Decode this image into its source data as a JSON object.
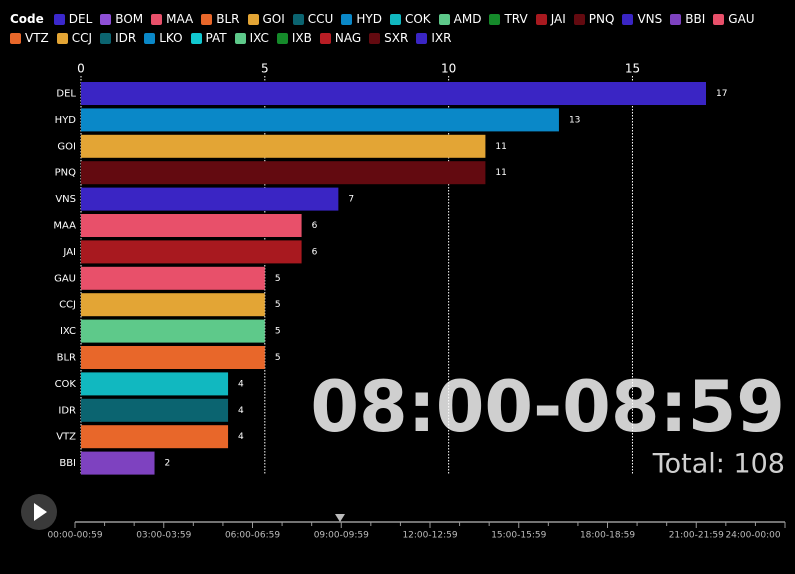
{
  "chart_data": {
    "type": "bar",
    "orientation": "horizontal",
    "legend_title": "Code",
    "legend": [
      {
        "name": "DEL",
        "color": "#3b28cc"
      },
      {
        "name": "BOM",
        "color": "#8e4fd6"
      },
      {
        "name": "MAA",
        "color": "#e8506a"
      },
      {
        "name": "BLR",
        "color": "#e8672a"
      },
      {
        "name": "GOI",
        "color": "#e3a535"
      },
      {
        "name": "CCU",
        "color": "#0b6470"
      },
      {
        "name": "HYD",
        "color": "#0a88c8"
      },
      {
        "name": "COK",
        "color": "#11b8c0"
      },
      {
        "name": "AMD",
        "color": "#5ec98a"
      },
      {
        "name": "TRV",
        "color": "#158a2a"
      },
      {
        "name": "JAI",
        "color": "#a8191f"
      },
      {
        "name": "PNQ",
        "color": "#630a10"
      },
      {
        "name": "VNS",
        "color": "#3a25c4"
      },
      {
        "name": "BBI",
        "color": "#7e42c0"
      },
      {
        "name": "GAU",
        "color": "#e8506a"
      },
      {
        "name": "VTZ",
        "color": "#e8672a"
      },
      {
        "name": "CCJ",
        "color": "#e3a535"
      },
      {
        "name": "IDR",
        "color": "#0b6470"
      },
      {
        "name": "LKO",
        "color": "#0a88c8"
      },
      {
        "name": "PAT",
        "color": "#11c8d0"
      },
      {
        "name": "IXC",
        "color": "#5ec98a"
      },
      {
        "name": "IXB",
        "color": "#158a2a"
      },
      {
        "name": "NAG",
        "color": "#b81d24"
      },
      {
        "name": "SXR",
        "color": "#630a10"
      },
      {
        "name": "IXR",
        "color": "#3a25c4"
      }
    ],
    "categories": [
      "DEL",
      "HYD",
      "GOI",
      "PNQ",
      "VNS",
      "MAA",
      "JAI",
      "GAU",
      "CCJ",
      "IXC",
      "BLR",
      "COK",
      "IDR",
      "VTZ",
      "BBI"
    ],
    "values": [
      17,
      13,
      11,
      11,
      7,
      6,
      6,
      5,
      5,
      5,
      5,
      4,
      4,
      4,
      2
    ],
    "colors": [
      "#3a25c4",
      "#0a88c8",
      "#e3a535",
      "#630a10",
      "#3a25c4",
      "#e8506a",
      "#a8191f",
      "#e8506a",
      "#e3a535",
      "#5ec98a",
      "#e8672a",
      "#11b8c0",
      "#0b6470",
      "#e8672a",
      "#7e42c0"
    ],
    "xlim": [
      0,
      17
    ],
    "xticks": [
      0,
      5,
      10,
      15
    ],
    "grid": true,
    "time_label": "08:00-08:59",
    "total_label": "Total: 108",
    "timeline_ticks": [
      "00:00-00:59",
      "03:00-03:59",
      "06:00-06:59",
      "09:00-09:59",
      "12:00-12:59",
      "15:00-15:59",
      "18:00-18:59",
      "21:00-21:59",
      "24:00-00:00"
    ]
  }
}
